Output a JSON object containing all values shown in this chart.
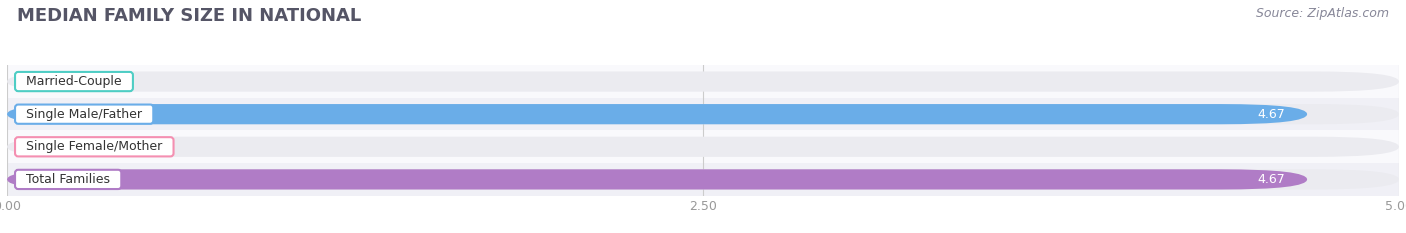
{
  "title": "MEDIAN FAMILY SIZE IN NATIONAL",
  "source": "Source: ZipAtlas.com",
  "categories": [
    "Married-Couple",
    "Single Male/Father",
    "Single Female/Mother",
    "Total Families"
  ],
  "values": [
    0.0,
    4.67,
    0.0,
    4.67
  ],
  "bar_colors": [
    "#4ecdc4",
    "#6aade8",
    "#f48fb1",
    "#b07cc6"
  ],
  "label_bg_colors": [
    "#ffffff",
    "#ffffff",
    "#ffffff",
    "#ffffff"
  ],
  "label_border_colors": [
    "#4ecdc4",
    "#6aade8",
    "#f48fb1",
    "#b07cc6"
  ],
  "xlim": [
    0,
    5.0
  ],
  "xticks": [
    0.0,
    2.5,
    5.0
  ],
  "xtick_labels": [
    "0.00",
    "2.50",
    "5.00"
  ],
  "bar_height": 0.62,
  "background_color": "#ffffff",
  "bar_bg_color": "#ebebf0",
  "title_fontsize": 13,
  "source_fontsize": 9,
  "label_fontsize": 9,
  "value_fontsize": 9,
  "row_bg_colors": [
    "#f9f9fc",
    "#f0f0f6",
    "#f9f9fc",
    "#f0f0f6"
  ]
}
